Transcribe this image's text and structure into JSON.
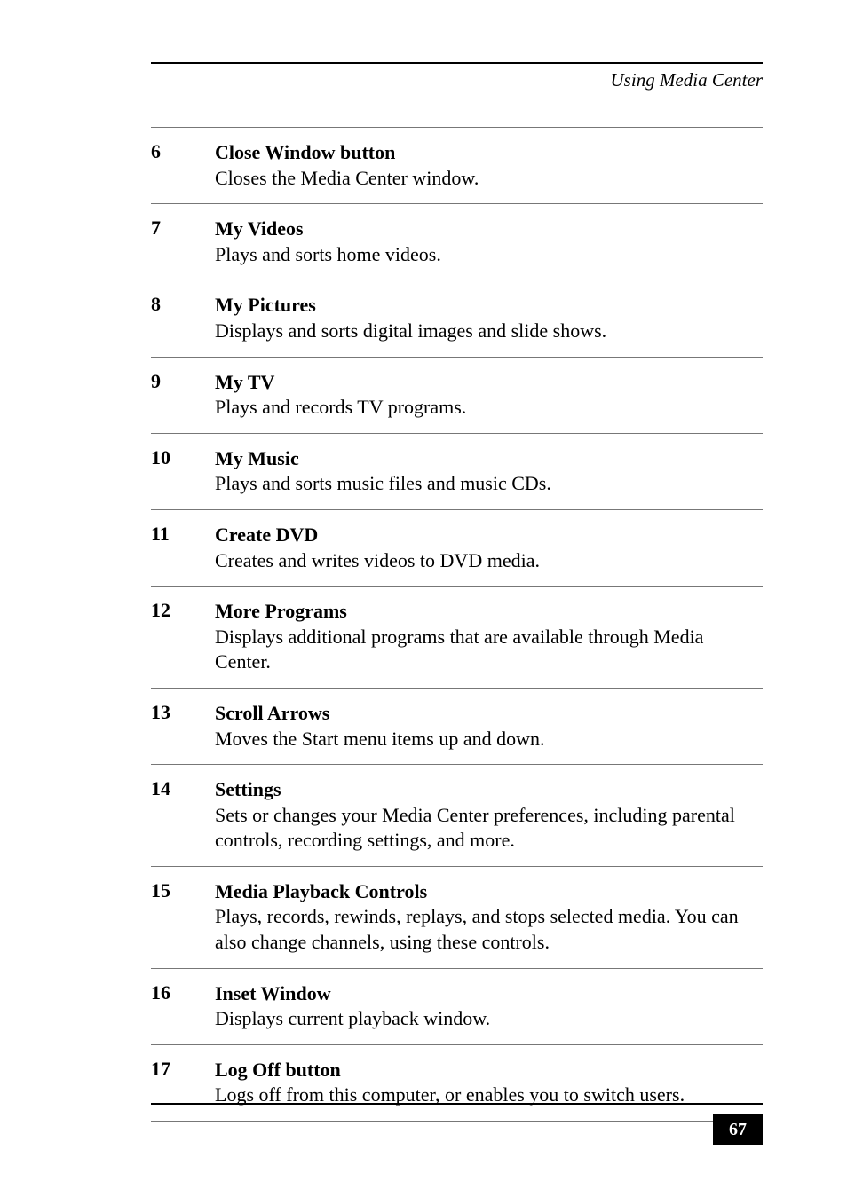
{
  "header": {
    "section_title": "Using Media Center"
  },
  "entries": [
    {
      "num": "6",
      "title": "Close Window button",
      "desc": "Closes the Media Center window."
    },
    {
      "num": "7",
      "title": "My Videos",
      "desc": "Plays and sorts home videos."
    },
    {
      "num": "8",
      "title": "My Pictures",
      "desc": "Displays and sorts digital images and slide shows."
    },
    {
      "num": "9",
      "title": "My TV",
      "desc": "Plays and records TV programs."
    },
    {
      "num": "10",
      "title": "My Music",
      "desc": "Plays and sorts music files and music CDs."
    },
    {
      "num": "11",
      "title": "Create DVD",
      "desc": "Creates and writes videos to DVD media."
    },
    {
      "num": "12",
      "title": "More Programs",
      "desc": "Displays additional programs that are available through Media Center."
    },
    {
      "num": "13",
      "title": "Scroll Arrows",
      "desc": "Moves the Start menu items up and down."
    },
    {
      "num": "14",
      "title": "Settings",
      "desc": "Sets or changes your Media Center preferences, including parental controls, recording settings, and more."
    },
    {
      "num": "15",
      "title": "Media Playback Controls",
      "desc": "Plays, records, rewinds, replays, and stops selected media. You can also change channels, using these controls."
    },
    {
      "num": "16",
      "title": "Inset Window",
      "desc": "Displays current playback window."
    },
    {
      "num": "17",
      "title": "Log Off button",
      "desc": "Logs off from this computer, or enables you to switch users."
    }
  ],
  "page_number": "67"
}
